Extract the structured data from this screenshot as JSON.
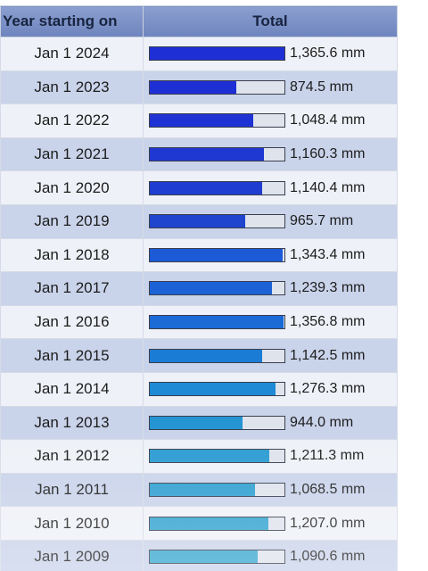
{
  "table": {
    "headers": {
      "year": "Year starting on",
      "total": "Total"
    }
  },
  "chart_data": {
    "type": "bar",
    "orientation": "horizontal",
    "categories": [
      "Jan 1 2024",
      "Jan 1 2023",
      "Jan 1 2022",
      "Jan 1 2021",
      "Jan 1 2020",
      "Jan 1 2019",
      "Jan 1 2018",
      "Jan 1 2017",
      "Jan 1 2016",
      "Jan 1 2015",
      "Jan 1 2014",
      "Jan 1 2013",
      "Jan 1 2012",
      "Jan 1 2011",
      "Jan 1 2010",
      "Jan 1 2009"
    ],
    "values": [
      1365.6,
      874.5,
      1048.4,
      1160.3,
      1140.4,
      965.7,
      1343.4,
      1239.3,
      1356.8,
      1142.5,
      1276.3,
      944.0,
      1211.3,
      1068.5,
      1207.0,
      1090.6
    ],
    "labels": [
      "1,365.6 mm",
      "874.5 mm",
      "1,048.4 mm",
      "1,160.3 mm",
      "1,140.4 mm",
      "965.7 mm",
      "1,343.4 mm",
      "1,239.3 mm",
      "1,356.8 mm",
      "1,142.5 mm",
      "1,276.3 mm",
      "944.0 mm",
      "1,211.3 mm",
      "1,068.5 mm",
      "1,207.0 mm",
      "1,090.6 mm"
    ],
    "bar_colors": [
      "#1f2fd6",
      "#1f2fd6",
      "#1f32d4",
      "#1f38d2",
      "#1f3dd0",
      "#1f45ce",
      "#1c5ad6",
      "#1c62d6",
      "#1a6bd6",
      "#1b7cd6",
      "#1e8ad6",
      "#2494d2",
      "#2a9bd2",
      "#2e9fd0",
      "#31a3cf",
      "#33a6ce"
    ],
    "title": "",
    "xlabel": "",
    "ylabel": "",
    "xlim": [
      0,
      1365.6
    ],
    "grid": false,
    "legend": "none"
  }
}
